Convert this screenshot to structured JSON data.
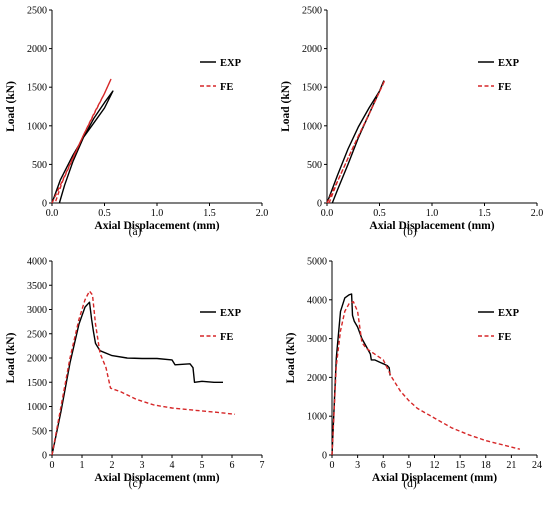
{
  "chart_data": [
    {
      "type": "line",
      "panel_label": "(a)",
      "xlabel": "Axial Displacement (mm)",
      "ylabel": "Load (kN)",
      "xlim": [
        0,
        2.0
      ],
      "ylim": [
        0,
        2500
      ],
      "x_ticks": [
        "0.0",
        "0.5",
        "1.0",
        "1.5",
        "2.0"
      ],
      "y_ticks": [
        "0",
        "500",
        "1000",
        "1500",
        "2000",
        "2500"
      ],
      "legend": {
        "position": "right-upper",
        "entries": [
          "EXP",
          "FE"
        ]
      },
      "series": [
        {
          "name": "EXP",
          "color": "#000000",
          "dash": "solid",
          "x": [
            0.0,
            0.08,
            0.2,
            0.3,
            0.4,
            0.5,
            0.58,
            0.5,
            0.4,
            0.3,
            0.2,
            0.12,
            0.07
          ],
          "y": [
            0,
            300,
            620,
            850,
            1040,
            1230,
            1450,
            1300,
            1100,
            850,
            540,
            230,
            0
          ]
        },
        {
          "name": "FE",
          "color": "#d62728",
          "dash": "dashed",
          "x": [
            0.0,
            0.1,
            0.2,
            0.3,
            0.4,
            0.5,
            0.56,
            0.5,
            0.4,
            0.3,
            0.2,
            0.1,
            0.03
          ],
          "y": [
            0,
            290,
            590,
            880,
            1150,
            1420,
            1600,
            1420,
            1160,
            880,
            580,
            280,
            0
          ]
        }
      ]
    },
    {
      "type": "line",
      "panel_label": "(b)",
      "xlabel": "Axial Displacement (mm)",
      "ylabel": "Load (kN)",
      "xlim": [
        0,
        2.0
      ],
      "ylim": [
        0,
        2500
      ],
      "x_ticks": [
        "0.0",
        "0.5",
        "1.0",
        "1.5",
        "2.0"
      ],
      "y_ticks": [
        "0",
        "500",
        "1000",
        "1500",
        "2000",
        "2500"
      ],
      "legend": {
        "position": "right-upper",
        "entries": [
          "EXP",
          "FE"
        ]
      },
      "series": [
        {
          "name": "EXP",
          "color": "#000000",
          "dash": "solid",
          "x": [
            0.0,
            0.1,
            0.2,
            0.3,
            0.4,
            0.5,
            0.54,
            0.5,
            0.4,
            0.3,
            0.2,
            0.1,
            0.05
          ],
          "y": [
            0,
            360,
            700,
            990,
            1230,
            1450,
            1580,
            1450,
            1150,
            850,
            500,
            170,
            0
          ]
        },
        {
          "name": "FE",
          "color": "#d62728",
          "dash": "dashed",
          "x": [
            0.0,
            0.1,
            0.2,
            0.3,
            0.4,
            0.5,
            0.55,
            0.5,
            0.4,
            0.3,
            0.2,
            0.1,
            0.02
          ],
          "y": [
            0,
            280,
            580,
            870,
            1150,
            1440,
            1590,
            1440,
            1150,
            870,
            580,
            280,
            0
          ]
        }
      ]
    },
    {
      "type": "line",
      "panel_label": "(c)",
      "xlabel": "Axial Displacement (mm)",
      "ylabel": "Load (kN)",
      "xlim": [
        0,
        7
      ],
      "ylim": [
        0,
        4000
      ],
      "x_ticks": [
        "0",
        "1",
        "2",
        "3",
        "4",
        "5",
        "6",
        "7"
      ],
      "y_ticks": [
        "0",
        "500",
        "1000",
        "1500",
        "2000",
        "2500",
        "3000",
        "3500",
        "4000"
      ],
      "legend": {
        "position": "right-upper",
        "entries": [
          "EXP",
          "FE"
        ]
      },
      "series": [
        {
          "name": "EXP",
          "color": "#000000",
          "dash": "solid",
          "x": [
            0,
            0.3,
            0.6,
            0.9,
            1.1,
            1.25,
            1.32,
            1.38,
            1.45,
            1.6,
            2.0,
            2.5,
            3.0,
            3.5,
            4.0,
            4.1,
            4.6,
            4.7,
            4.75,
            5.0,
            5.4,
            5.7
          ],
          "y": [
            0,
            900,
            1900,
            2700,
            3050,
            3150,
            2800,
            2550,
            2300,
            2150,
            2050,
            2000,
            1990,
            1990,
            1960,
            1860,
            1880,
            1800,
            1500,
            1520,
            1500,
            1500
          ]
        },
        {
          "name": "FE",
          "color": "#d62728",
          "dash": "dashed",
          "x": [
            0,
            0.3,
            0.6,
            0.9,
            1.1,
            1.25,
            1.35,
            1.45,
            1.6,
            1.8,
            1.95,
            2.3,
            2.8,
            3.4,
            4.0,
            4.8,
            5.5,
            6.1
          ],
          "y": [
            0,
            1000,
            2000,
            2800,
            3200,
            3380,
            3300,
            2700,
            2100,
            1800,
            1380,
            1300,
            1150,
            1030,
            970,
            920,
            880,
            840
          ]
        }
      ]
    },
    {
      "type": "line",
      "panel_label": "(d)",
      "xlabel": "Axial Displacement (mm)",
      "ylabel": "Load (kN)",
      "xlim": [
        0,
        24
      ],
      "ylim": [
        0,
        5000
      ],
      "x_ticks": [
        "0",
        "3",
        "6",
        "9",
        "12",
        "15",
        "18",
        "21",
        "24"
      ],
      "y_ticks": [
        "0",
        "1000",
        "2000",
        "3000",
        "4000",
        "5000"
      ],
      "legend": {
        "position": "right-upper",
        "entries": [
          "EXP",
          "FE"
        ]
      },
      "series": [
        {
          "name": "EXP",
          "color": "#000000",
          "dash": "solid",
          "x": [
            0,
            0.5,
            1.0,
            1.5,
            2.0,
            2.3,
            2.4,
            2.6,
            3.0,
            3.5,
            4.0,
            4.5,
            4.6,
            5.0,
            5.5,
            6.0,
            6.5,
            6.7,
            6.8
          ],
          "y": [
            0,
            2500,
            3700,
            4050,
            4130,
            4150,
            3600,
            3450,
            3300,
            3000,
            2800,
            2600,
            2450,
            2450,
            2400,
            2350,
            2300,
            2250,
            2050
          ]
        },
        {
          "name": "FE",
          "color": "#d62728",
          "dash": "dashed",
          "x": [
            0,
            0.5,
            1.0,
            1.5,
            2.0,
            2.5,
            3.0,
            3.5,
            4.0,
            5.0,
            6.0,
            7.0,
            8.0,
            9.0,
            10.0,
            12.0,
            14.0,
            16.0,
            18.0,
            20.0,
            22.0
          ],
          "y": [
            0,
            2300,
            3200,
            3700,
            3900,
            3950,
            3700,
            2900,
            2750,
            2600,
            2450,
            2000,
            1650,
            1400,
            1200,
            950,
            700,
            520,
            370,
            260,
            150
          ]
        }
      ]
    }
  ]
}
